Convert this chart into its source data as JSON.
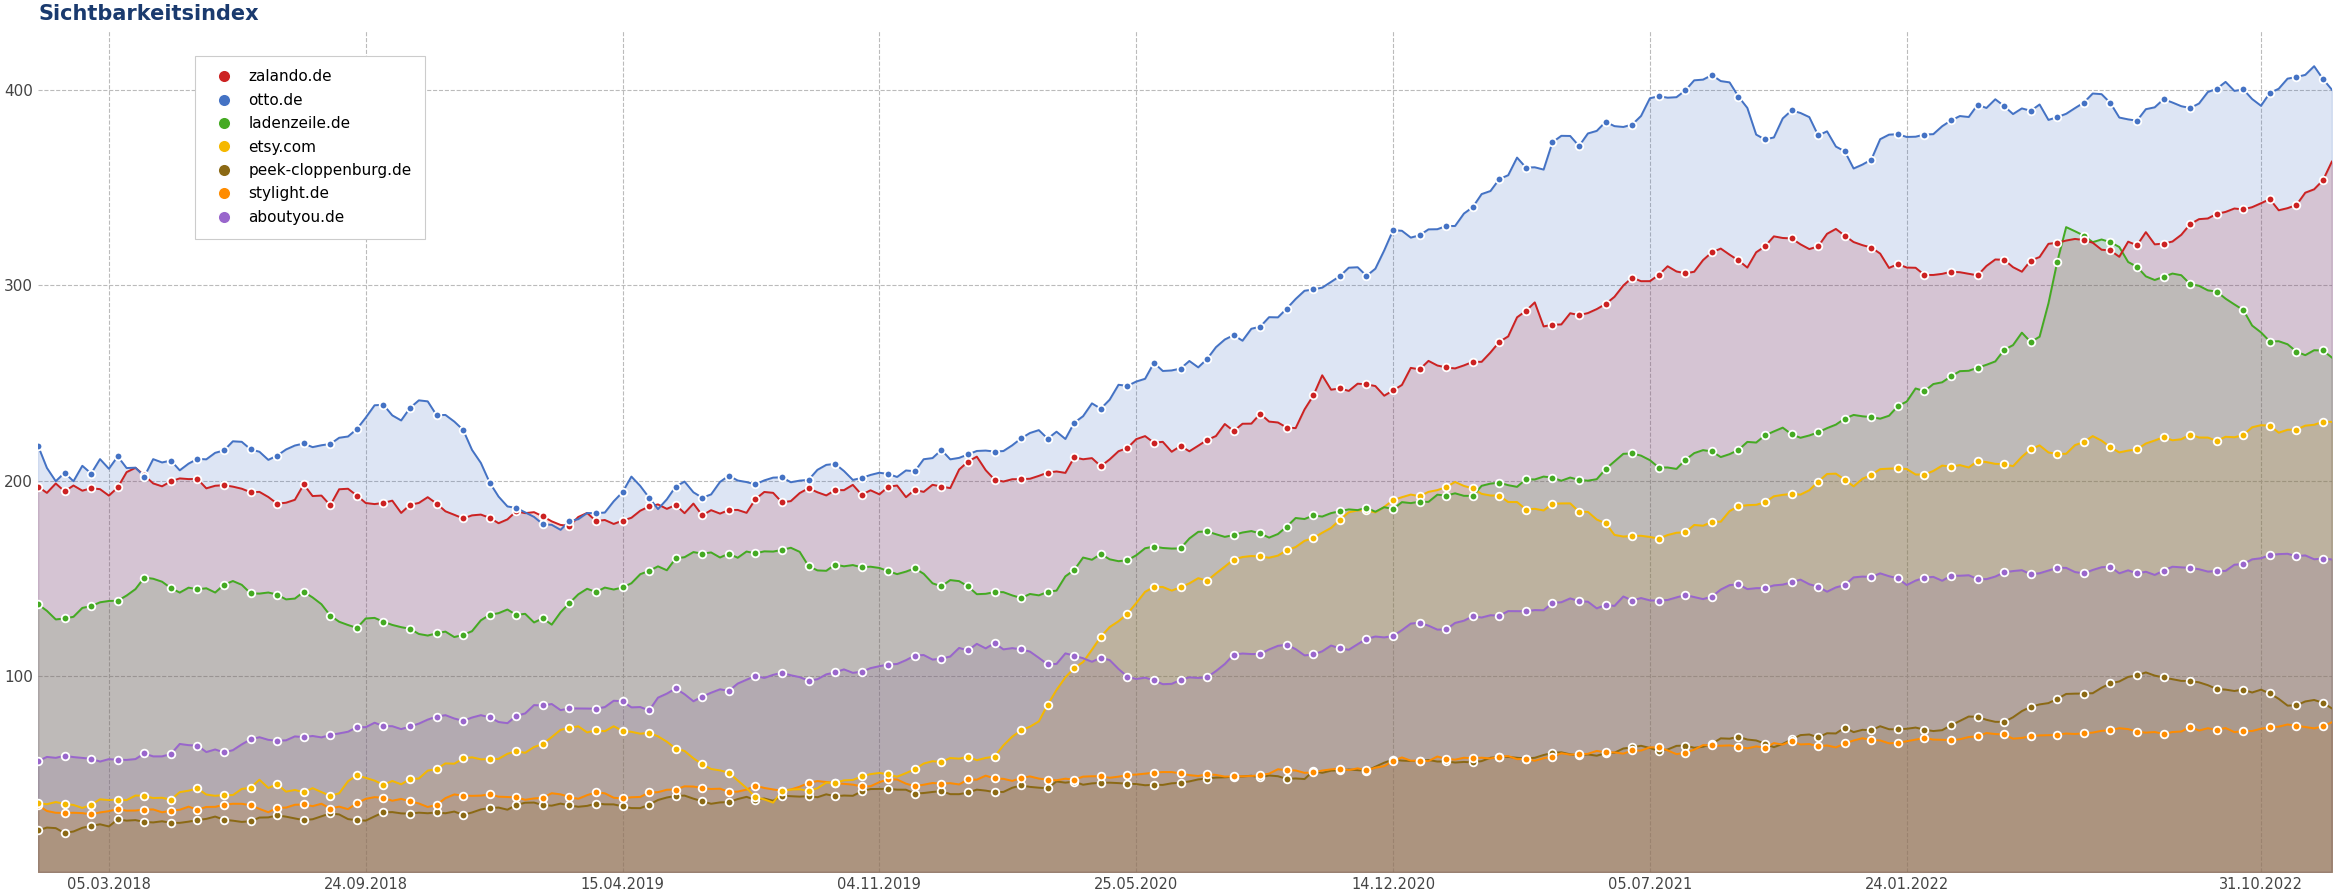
{
  "title": "Sichtbarkeitsindex",
  "title_color": "#1a3a6e",
  "title_fontsize": 15,
  "background_color": "#ffffff",
  "ylim": [
    0,
    430
  ],
  "yticks": [
    100,
    200,
    300,
    400
  ],
  "x_tick_dates": [
    "2018-03-05",
    "2018-09-24",
    "2019-04-15",
    "2019-11-04",
    "2020-05-25",
    "2020-12-14",
    "2021-07-05",
    "2022-01-24",
    "2022-10-31"
  ],
  "x_tick_labels": [
    "05.03.2018",
    "24.09.2018",
    "15.04.2019",
    "04.11.2019",
    "25.05.2020",
    "14.12.2020",
    "05.07.2021",
    "24.01.2022",
    "31.10.2022"
  ],
  "domains": [
    "zalando.de",
    "otto.de",
    "ladenzeile.de",
    "etsy.com",
    "peek-cloppenburg.de",
    "stylight.de",
    "aboutyou.de"
  ],
  "colors": {
    "zalando.de": "#cc2222",
    "otto.de": "#4472c4",
    "ladenzeile.de": "#44aa22",
    "etsy.com": "#f5b800",
    "peek-cloppenburg.de": "#8b6914",
    "stylight.de": "#ff8c00",
    "aboutyou.de": "#9966cc"
  },
  "fill_colors": {
    "zalando.de": "#cc2222",
    "otto.de": "#4472c4",
    "ladenzeile.de": "#44aa22",
    "etsy.com": "#f5b800",
    "peek-cloppenburg.de": "#8b6914",
    "stylight.de": "#ff8c00",
    "aboutyou.de": "#9966cc"
  },
  "fill_alpha": 0.18,
  "marker_interval": 3,
  "marker_size": 5.5,
  "line_width": 1.4
}
